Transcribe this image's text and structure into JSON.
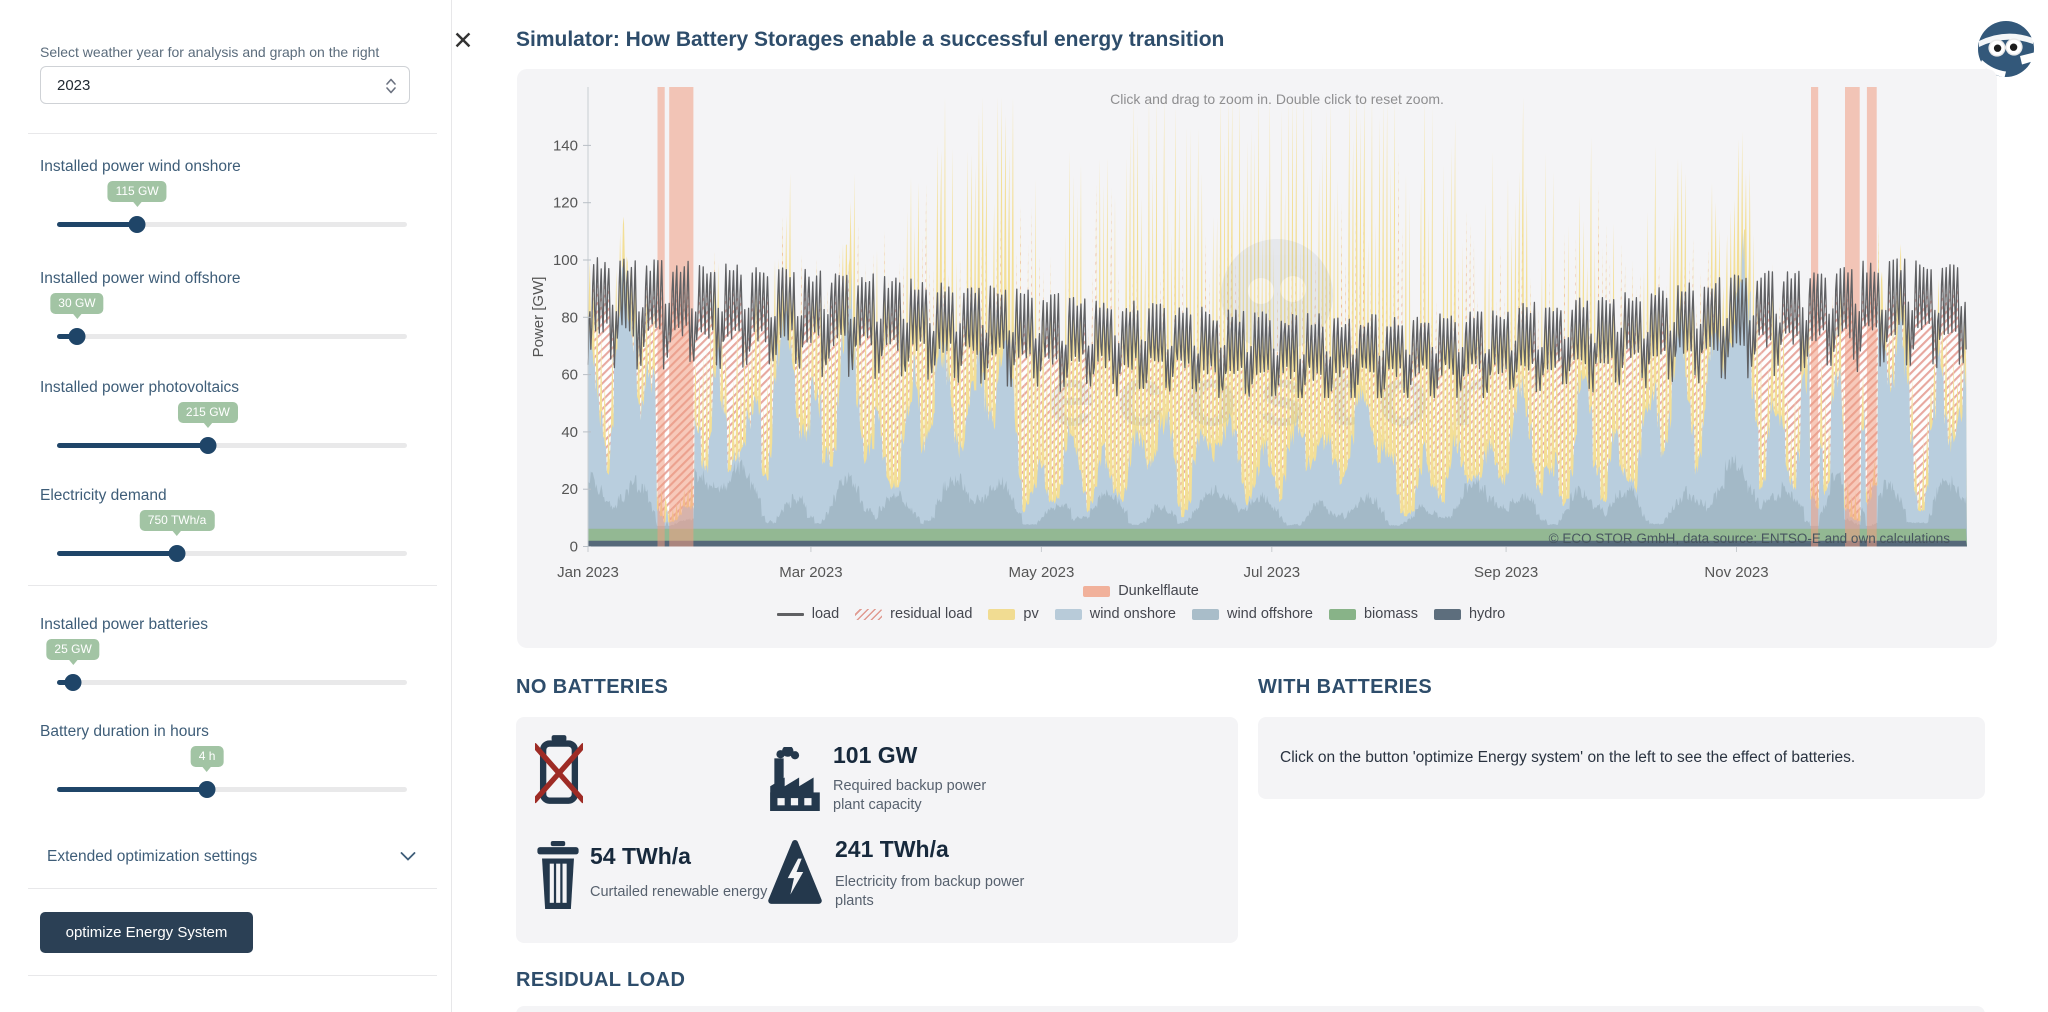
{
  "app": {
    "title": "Simulator: How Battery Storages enable a successful energy transition",
    "close_icon": "✕"
  },
  "sidebar": {
    "weather_year": {
      "label": "Select weather year for analysis and graph on the right",
      "value": "2023"
    },
    "sliders": [
      {
        "label": "Installed power wind onshore",
        "value": "115 GW",
        "fraction": 0.229
      },
      {
        "label": "Installed power wind offshore",
        "value": "30 GW",
        "fraction": 0.057
      },
      {
        "label": "Installed power photovoltaics",
        "value": "215 GW",
        "fraction": 0.431
      },
      {
        "label": "Electricity demand",
        "value": "750 TWh/a",
        "fraction": 0.343
      },
      {
        "label": "Installed power batteries",
        "value": "25 GW",
        "fraction": 0.046
      },
      {
        "label": "Battery duration in hours",
        "value": "4 h",
        "fraction": 0.429
      }
    ],
    "extended_settings_label": "Extended optimization settings",
    "optimize_button": "optimize Energy System"
  },
  "chart_data": {
    "type": "area",
    "hint": "Click and drag to zoom in. Double click to reset zoom.",
    "ylabel": "Power [GW]",
    "yticks": [
      0,
      20,
      40,
      60,
      80,
      100,
      120,
      140
    ],
    "ylim": [
      0,
      160
    ],
    "xticks": [
      {
        "label": "Jan 2023",
        "day": 0
      },
      {
        "label": "Mar 2023",
        "day": 59
      },
      {
        "label": "May 2023",
        "day": 120
      },
      {
        "label": "Jul 2023",
        "day": 181
      },
      {
        "label": "Sep 2023",
        "day": 243
      },
      {
        "label": "Nov 2023",
        "day": 304
      }
    ],
    "days": 365,
    "samples_per_day": 4,
    "attribution": "© ECO STOR GmbH, data source: ENTSO-E and own calculations",
    "watermark_text": "ecostor",
    "legend_top": [
      {
        "label": "Dunkelflaute",
        "swatch": "box",
        "color": "#f1b19b"
      }
    ],
    "legend": [
      {
        "label": "load",
        "swatch": "line",
        "color": "#5f6063"
      },
      {
        "label": "residual load",
        "swatch": "hatch",
        "color": "#e09a90"
      },
      {
        "label": "pv",
        "swatch": "box",
        "color": "#f1dc92"
      },
      {
        "label": "wind onshore",
        "swatch": "box",
        "color": "#b8cbd9"
      },
      {
        "label": "wind offshore",
        "swatch": "box",
        "color": "#a9bdc9"
      },
      {
        "label": "biomass",
        "swatch": "box",
        "color": "#88b388"
      },
      {
        "label": "hydro",
        "swatch": "box",
        "color": "#5d6e7d"
      }
    ],
    "dunkelflaute_bands_days": [
      [
        18.4,
        20.3
      ],
      [
        21.5,
        27.9
      ],
      [
        323.7,
        325.6
      ],
      [
        332.7,
        336.6
      ],
      [
        338.5,
        341.1
      ]
    ],
    "monthly": {
      "load_avg_gw": [
        88,
        86,
        83,
        79,
        75,
        72,
        70,
        71,
        75,
        80,
        85,
        88
      ],
      "wind_onshore_gw": [
        44,
        40,
        36,
        30,
        25,
        21,
        19,
        21,
        27,
        35,
        42,
        46
      ],
      "wind_offshore_gw": [
        14,
        13,
        12,
        10,
        9,
        8,
        8,
        8,
        10,
        12,
        13,
        14
      ],
      "pv_noon_gw": [
        30,
        48,
        72,
        95,
        112,
        124,
        127,
        118,
        95,
        65,
        36,
        25
      ],
      "biomass_gw": 4.2,
      "hydro_gw": 2.0
    },
    "daily_profiles": {
      "load_shape": [
        0.86,
        1.02,
        1.12,
        0.95
      ],
      "pv_shape": [
        0,
        0.5,
        1,
        0.1
      ],
      "weekend_factor": 0.85
    },
    "series_colors": {
      "pv": "#f3df96",
      "wind_onshore": "#b9cede",
      "wind_offshore": "#a3b9c7",
      "biomass": "#93b893",
      "hydro": "#56697a",
      "load_line": "#5f6063",
      "residual_hatch": "#e6a096",
      "dunkelflaute": "#f09d82"
    }
  },
  "sections": {
    "no_batteries": {
      "title": "NO BATTERIES",
      "backup_capacity": {
        "value": "101 GW",
        "desc": "Required backup power plant capacity"
      },
      "curtailed": {
        "value": "54 TWh/a",
        "desc": "Curtailed renewable energy"
      },
      "backup_energy": {
        "value": "241 TWh/a",
        "desc": "Electricity from backup power plants"
      }
    },
    "with_batteries": {
      "title": "WITH BATTERIES",
      "message": "Click on the button 'optimize Energy system' on the left to see the effect of batteries."
    },
    "residual_load": {
      "title": "RESIDUAL LOAD"
    }
  }
}
